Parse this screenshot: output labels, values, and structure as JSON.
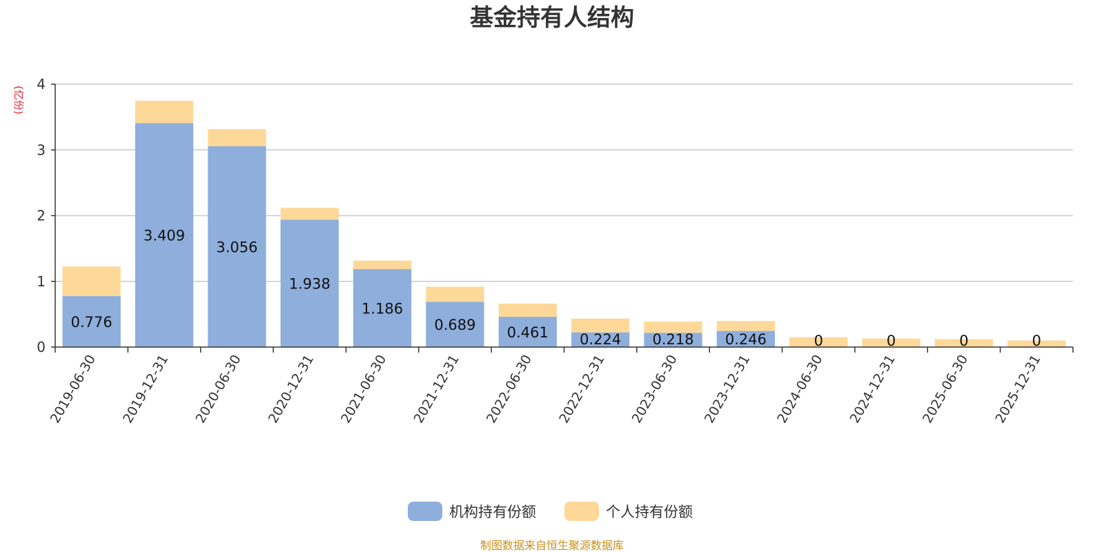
{
  "chart_data": {
    "type": "bar",
    "stacked": true,
    "title": "基金持有人结构",
    "unit_label": "(亿份)",
    "ylim": [
      0,
      4
    ],
    "yticks": [
      0,
      1,
      2,
      3,
      4
    ],
    "grid": true,
    "legend_position": "bottom-center",
    "categories": [
      "2019-06-30",
      "2019-12-31",
      "2020-06-30",
      "2020-12-31",
      "2021-06-30",
      "2021-12-31",
      "2022-06-30",
      "2022-12-31",
      "2023-06-30",
      "2023-12-31",
      "2024-06-30",
      "2024-12-31",
      "2025-06-30",
      "2025-12-31"
    ],
    "series": [
      {
        "name": "机构持有份额",
        "color": "#8eaedc",
        "values": [
          0.776,
          3.409,
          3.056,
          1.938,
          1.186,
          0.689,
          0.461,
          0.224,
          0.218,
          0.246,
          0,
          0,
          0,
          0
        ],
        "labels": [
          "0.776",
          "3.409",
          "3.056",
          "1.938",
          "1.186",
          "0.689",
          "0.461",
          "0.224",
          "0.218",
          "0.246",
          "0",
          "0",
          "0",
          "0"
        ]
      },
      {
        "name": "个人持有份额",
        "color": "#fdd898",
        "values": [
          0.45,
          0.34,
          0.26,
          0.18,
          0.13,
          0.23,
          0.2,
          0.21,
          0.17,
          0.15,
          0.15,
          0.13,
          0.12,
          0.1
        ]
      }
    ]
  },
  "footer": {
    "source": "制图数据来自恒生聚源数据库"
  }
}
